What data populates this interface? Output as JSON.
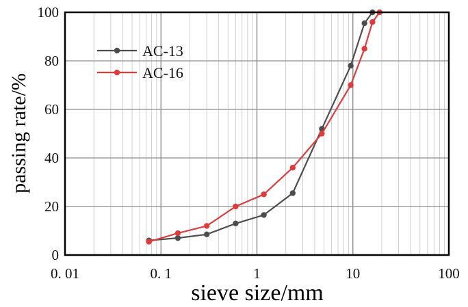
{
  "chart_data": {
    "type": "line",
    "title": "",
    "xlabel": "sieve size/mm",
    "ylabel": "passing rate/%",
    "x_scale": "log",
    "xlim": [
      0.01,
      100
    ],
    "ylim": [
      0,
      100
    ],
    "x_ticks": [
      0.01,
      0.1,
      1,
      10,
      100
    ],
    "x_tick_labels": [
      "0. 01",
      "0. 1",
      "1",
      "10",
      "100"
    ],
    "y_ticks": [
      0,
      20,
      40,
      60,
      80,
      100
    ],
    "y_tick_labels": [
      "0",
      "20",
      "40",
      "60",
      "80",
      "100"
    ],
    "grid": true,
    "legend_position": "top-left",
    "series": [
      {
        "name": "AC-13",
        "color": "#4d4d4d",
        "x": [
          0.075,
          0.15,
          0.3,
          0.6,
          1.18,
          2.36,
          4.75,
          9.5,
          13.2,
          16
        ],
        "values": [
          6,
          7,
          8.5,
          13,
          16.5,
          25.5,
          52,
          78,
          95.5,
          100
        ]
      },
      {
        "name": "AC-16",
        "color": "#e03a3a",
        "x": [
          0.075,
          0.15,
          0.3,
          0.6,
          1.18,
          2.36,
          4.75,
          9.5,
          13.2,
          16,
          19
        ],
        "values": [
          5.5,
          9,
          12,
          20,
          25,
          36,
          50,
          70,
          85,
          96,
          100
        ]
      }
    ]
  }
}
